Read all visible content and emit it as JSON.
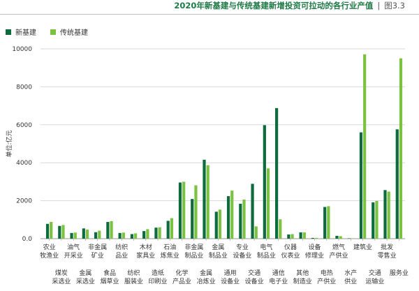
{
  "header": {
    "title": "2020年新基建与传统基建新增投资可拉动的各行业产值",
    "separator": "|",
    "figure_no": "图3.3"
  },
  "colors": {
    "new": "#0e6b3e",
    "traditional": "#7cc242",
    "grid": "#d9d9d9"
  },
  "chart_data": {
    "type": "bar",
    "ylabel": "单位:亿元",
    "ylim": [
      0,
      10000
    ],
    "yticks": [
      0,
      2000,
      4000,
      6000,
      8000,
      10000
    ],
    "yticks_labels": [
      "0.0",
      "2000",
      "4000",
      "6000",
      "8000",
      "10000"
    ],
    "legend_position": "top-left",
    "categories": [
      "农业牧渔业",
      "煤炭采选业",
      "油气开采业",
      "金属采选业",
      "非金属矿业",
      "食品烟草业",
      "纺织品业",
      "纺织服装业",
      "木材家具业",
      "造纸印刷业",
      "石油炼焦业",
      "化学产品业",
      "非金属制品业",
      "金属冶炼业",
      "金属制品业",
      "通用设备业",
      "专业设备业",
      "交通设备业",
      "电气制品业",
      "通信电子业",
      "仪器仪表业",
      "其他制造业",
      "设备修理业",
      "电热产供业",
      "燃气产供业",
      "水产供业",
      "建筑业",
      "交通运输业",
      "批发零售业",
      "服务业"
    ],
    "category_labels": [
      [
        "农业",
        "牧渔业"
      ],
      [
        "煤炭",
        "采选业"
      ],
      [
        "油气",
        "开采业"
      ],
      [
        "金属",
        "采选业"
      ],
      [
        "非金属",
        "矿业"
      ],
      [
        "食品",
        "烟草业"
      ],
      [
        "纺织",
        "品业"
      ],
      [
        "纺织",
        "服装业"
      ],
      [
        "木材",
        "家具业"
      ],
      [
        "造纸",
        "印刷业"
      ],
      [
        "石油",
        "炼焦业"
      ],
      [
        "化学",
        "产品业"
      ],
      [
        "非金属",
        "制品业"
      ],
      [
        "金属",
        "冶炼业"
      ],
      [
        "金属",
        "制品业"
      ],
      [
        "通用",
        "设备业"
      ],
      [
        "专业",
        "设备业"
      ],
      [
        "交通",
        "设备业"
      ],
      [
        "电气",
        "制品业"
      ],
      [
        "通信",
        "电子业"
      ],
      [
        "仪器",
        "仪表业"
      ],
      [
        "其他",
        "制造业"
      ],
      [
        "设备",
        "修理业"
      ],
      [
        "电热",
        "产供业"
      ],
      [
        "燃气",
        "产供业"
      ],
      [
        "水产",
        "供业"
      ],
      [
        "建筑业"
      ],
      [
        "交通",
        "运输业"
      ],
      [
        "批发",
        "零售业"
      ],
      [
        "服务业"
      ]
    ],
    "series": [
      {
        "name": "新基建",
        "values": [
          780,
          670,
          300,
          540,
          340,
          880,
          300,
          240,
          400,
          580,
          940,
          2960,
          2090,
          4160,
          1420,
          2240,
          1840,
          2890,
          5980,
          6880,
          220,
          330,
          40,
          1670,
          150,
          20,
          5600,
          1910,
          2560,
          5760
        ]
      },
      {
        "name": "传统基建",
        "values": [
          880,
          720,
          320,
          480,
          420,
          920,
          320,
          280,
          500,
          600,
          1080,
          3000,
          2810,
          3870,
          1530,
          2530,
          2060,
          650,
          3700,
          1020,
          240,
          330,
          40,
          1710,
          130,
          20,
          9710,
          1990,
          2480,
          9500
        ]
      }
    ]
  }
}
